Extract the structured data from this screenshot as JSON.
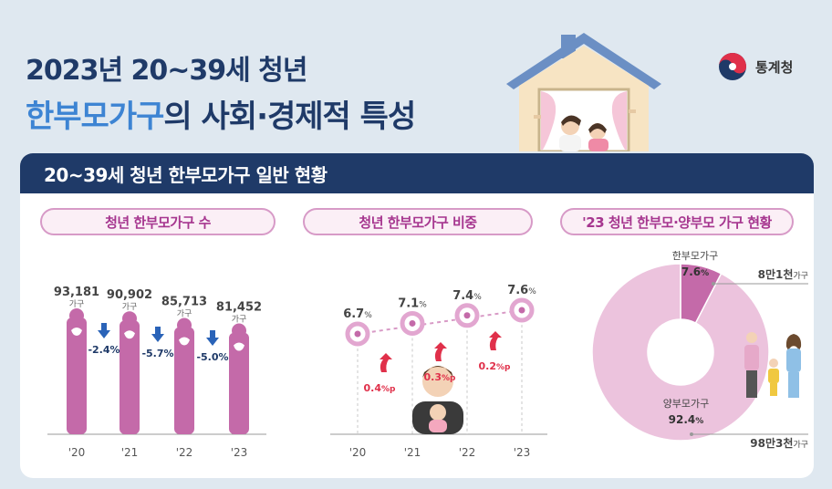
{
  "title_line1": "2023년 20~39세 청년",
  "title_line2_accent": "한부모가구",
  "title_line2_rest": "의 사회·경제적 특성",
  "logo_text": "통계청",
  "section_header": "20~39세 청년 한부모가구 일반 현황",
  "colors": {
    "navy": "#1f3a68",
    "accent_blue": "#3d84d3",
    "pink": "#c46aa9",
    "light_pink": "#ecc3dd",
    "red": "#e0304a",
    "down_blue": "#2a63b8"
  },
  "chart_data": [
    {
      "type": "bar",
      "title": "청년 한부모가구 수",
      "categories": [
        "'20",
        "'21",
        "'22",
        "'23"
      ],
      "values": [
        93181,
        90902,
        85713,
        81452
      ],
      "value_labels": [
        "93,181",
        "90,902",
        "85,713",
        "81,452"
      ],
      "unit": "가구",
      "changes": [
        "-2.4%",
        "-5.7%",
        "-5.0%"
      ]
    },
    {
      "type": "line",
      "title": "청년 한부모가구 비중",
      "categories": [
        "'20",
        "'21",
        "'22",
        "'23"
      ],
      "values": [
        6.7,
        7.1,
        7.4,
        7.6
      ],
      "unit": "%",
      "changes": [
        "0.4",
        "0.3",
        "0.2"
      ],
      "change_unit": "%p"
    },
    {
      "type": "pie",
      "title": "'23 청년 한부모·양부모 가구 현황",
      "slices": [
        {
          "name": "한부모가구",
          "value": 7.6,
          "count_num": "8만1천",
          "count_unit": "가구",
          "color": "#c46aa9"
        },
        {
          "name": "양부모가구",
          "value": 92.4,
          "count_num": "98만3천",
          "count_unit": "가구",
          "color": "#ecc3dd"
        }
      ],
      "unit": "%"
    }
  ]
}
